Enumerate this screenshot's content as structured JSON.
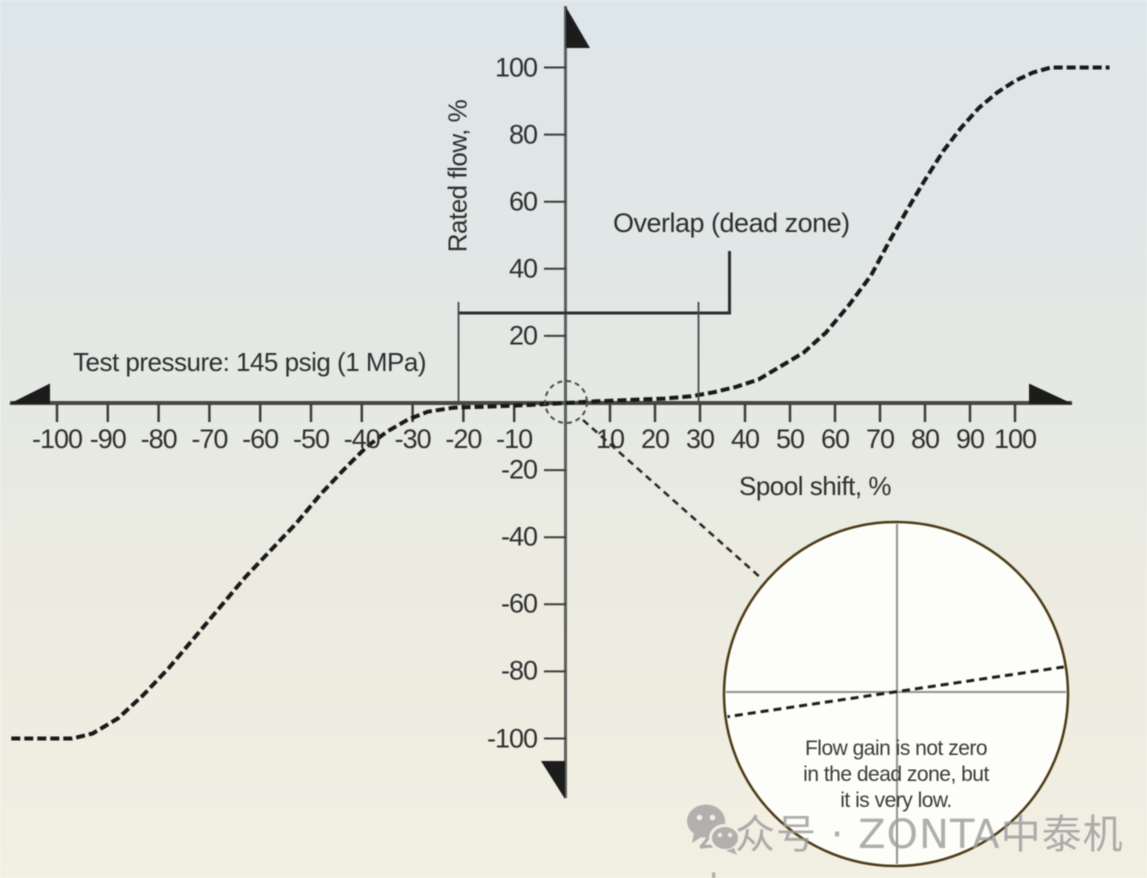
{
  "chart_data": {
    "type": "line",
    "title": "",
    "xlabel": "Spool shift, %",
    "ylabel": "Rated flow, %",
    "xlim": [
      -110,
      122
    ],
    "ylim": [
      -108,
      108
    ],
    "grid": false,
    "legend_position": "none",
    "x_ticks": [
      -100,
      -90,
      -80,
      -70,
      -60,
      -50,
      -40,
      -30,
      -20,
      -10,
      10,
      20,
      30,
      40,
      50,
      60,
      70,
      80,
      90,
      100
    ],
    "y_ticks": [
      100,
      80,
      60,
      40,
      20,
      -20,
      -40,
      -60,
      -80,
      -100
    ],
    "series": [
      {
        "name": "rated-flow-vs-spool-shift",
        "style": "dashed",
        "color": "#191919",
        "points": [
          [
            -109,
            -100
          ],
          [
            -97,
            -100
          ],
          [
            -93,
            -98.5
          ],
          [
            -88,
            -94
          ],
          [
            -83,
            -87
          ],
          [
            -78,
            -79
          ],
          [
            -73,
            -70
          ],
          [
            -68,
            -61
          ],
          [
            -63,
            -52
          ],
          [
            -58,
            -44
          ],
          [
            -53,
            -36
          ],
          [
            -48,
            -27
          ],
          [
            -43,
            -19
          ],
          [
            -39,
            -13
          ],
          [
            -35,
            -8.5
          ],
          [
            -31,
            -5
          ],
          [
            -27,
            -2.6
          ],
          [
            -22,
            -1.4
          ],
          [
            -14,
            -1
          ],
          [
            -7,
            -0.6
          ],
          [
            0,
            0
          ],
          [
            7,
            0.5
          ],
          [
            14,
            0.9
          ],
          [
            22,
            1.3
          ],
          [
            28,
            2
          ],
          [
            33,
            3.2
          ],
          [
            38,
            4.8
          ],
          [
            43,
            7
          ],
          [
            48,
            11
          ],
          [
            53,
            15
          ],
          [
            58,
            21
          ],
          [
            63,
            29
          ],
          [
            68,
            38
          ],
          [
            72,
            48
          ],
          [
            76,
            57.5
          ],
          [
            80,
            66.5
          ],
          [
            84,
            75
          ],
          [
            88,
            82
          ],
          [
            92,
            88
          ],
          [
            96,
            92.5
          ],
          [
            100,
            96
          ],
          [
            104,
            98.5
          ],
          [
            108,
            100
          ],
          [
            121,
            100
          ]
        ]
      }
    ],
    "dead_zone": {
      "approx_from_percent": -25,
      "approx_to_percent": 30
    },
    "annotations": {
      "test_pressure": "Test pressure: 145 psig (1 MPa)",
      "overlap": "Overlap (dead zone)",
      "magnifier_note_lines": [
        "Flow gain is not zero",
        "in the dead zone, but",
        "it is very low."
      ]
    }
  },
  "watermark": {
    "icon": "wechat-icon",
    "text": "公众号 · ZONTA中泰机电"
  },
  "colors": {
    "curve": "#191919",
    "axis": "#4a4e4d",
    "tick": "#3c3c3c",
    "bracket": "#3a3a3a",
    "magnifier_border": "#4c3a16",
    "magnifier_fill": "#fdfdfa",
    "crosshair": "#8f9391",
    "watermark_gray": "#9d9d9d"
  }
}
